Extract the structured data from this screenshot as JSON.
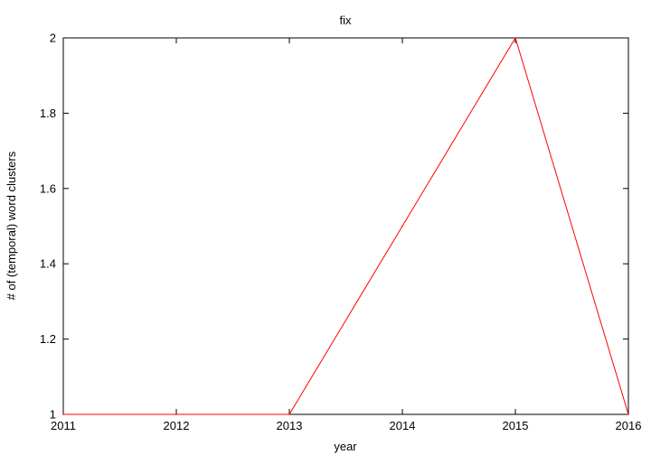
{
  "chart_data": {
    "type": "line",
    "title": "fix",
    "xlabel": "year",
    "ylabel": "# of (temporal) word clusters",
    "xlim": [
      2011,
      2016
    ],
    "ylim": [
      1,
      2
    ],
    "x_ticks": [
      "2011",
      "2012",
      "2013",
      "2014",
      "2015",
      "2016"
    ],
    "y_ticks": [
      "1",
      "1.2",
      "1.4",
      "1.6",
      "1.8",
      "2"
    ],
    "grid": false,
    "series": [
      {
        "color": "#ff0000",
        "x": [
          2011,
          2012,
          2013,
          2014,
          2015,
          2016
        ],
        "y": [
          1,
          1,
          1,
          1.5,
          2,
          1
        ]
      }
    ]
  }
}
